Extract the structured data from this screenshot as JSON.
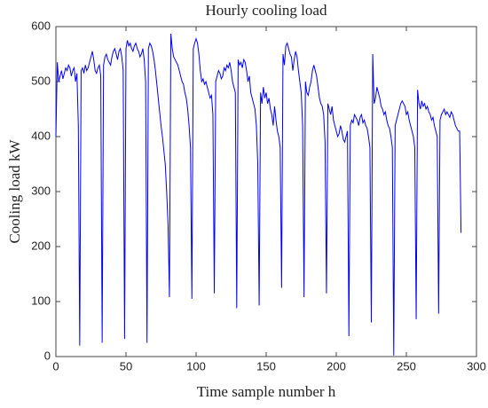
{
  "chart_data": {
    "type": "line",
    "title": "Hourly cooling load",
    "x_label": "Time sample number h",
    "y_label": "Cooling load  kW",
    "x": [
      0,
      1,
      2,
      3,
      4,
      5,
      6,
      7,
      8,
      9,
      10,
      11,
      12,
      13,
      14,
      15,
      16,
      17,
      18,
      19,
      20,
      21,
      22,
      23,
      24,
      25,
      26,
      27,
      28,
      29,
      30,
      31,
      32,
      33,
      34,
      35,
      36,
      37,
      38,
      39,
      40,
      41,
      42,
      43,
      44,
      45,
      46,
      47,
      48,
      49,
      50,
      51,
      52,
      53,
      54,
      55,
      56,
      57,
      58,
      59,
      60,
      61,
      62,
      63,
      64,
      65,
      66,
      67,
      68,
      69,
      70,
      71,
      72,
      73,
      74,
      75,
      76,
      77,
      78,
      79,
      80,
      81,
      82,
      83,
      84,
      85,
      86,
      87,
      88,
      89,
      90,
      91,
      92,
      93,
      94,
      95,
      96,
      97,
      98,
      99,
      100,
      101,
      102,
      103,
      104,
      105,
      106,
      107,
      108,
      109,
      110,
      111,
      112,
      113,
      114,
      115,
      116,
      117,
      118,
      119,
      120,
      121,
      122,
      123,
      124,
      125,
      126,
      127,
      128,
      129,
      130,
      131,
      132,
      133,
      134,
      135,
      136,
      137,
      138,
      139,
      140,
      141,
      142,
      143,
      144,
      145,
      146,
      147,
      148,
      149,
      150,
      151,
      152,
      153,
      154,
      155,
      156,
      157,
      158,
      159,
      160,
      161,
      162,
      163,
      164,
      165,
      166,
      167,
      168,
      169,
      170,
      171,
      172,
      173,
      174,
      175,
      176,
      177,
      178,
      179,
      180,
      181,
      182,
      183,
      184,
      185,
      186,
      187,
      188,
      189,
      190,
      191,
      192,
      193,
      194,
      195,
      196,
      197,
      198,
      199,
      200,
      201,
      202,
      203,
      204,
      205,
      206,
      207,
      208,
      209,
      210,
      211,
      212,
      213,
      214,
      215,
      216,
      217,
      218,
      219,
      220,
      221,
      222,
      223,
      224,
      225,
      226,
      227,
      228,
      229,
      230,
      231,
      232,
      233,
      234,
      235,
      236,
      237,
      238,
      239,
      240,
      241,
      242,
      243,
      244,
      245,
      246,
      247,
      248,
      249,
      250,
      251,
      252,
      253,
      254,
      255,
      256,
      257,
      258,
      259,
      260,
      261,
      262,
      263,
      264,
      265,
      266,
      267,
      268,
      269,
      270,
      271,
      272,
      273,
      274,
      275,
      276,
      277,
      278,
      279,
      280,
      281,
      282,
      283,
      284,
      285,
      286,
      287,
      288,
      289
    ],
    "series": [
      {
        "name": "Cooling load",
        "color": "#0000ff",
        "values": [
          400,
          535,
          500,
          510,
          520,
          505,
          515,
          525,
          520,
          530,
          525,
          510,
          520,
          525,
          500,
          515,
          420,
          20,
          520,
          525,
          515,
          530,
          520,
          525,
          535,
          545,
          555,
          540,
          520,
          515,
          525,
          530,
          510,
          25,
          530,
          545,
          550,
          540,
          535,
          530,
          545,
          555,
          560,
          550,
          540,
          555,
          560,
          545,
          520,
          32,
          560,
          575,
          565,
          570,
          560,
          555,
          565,
          570,
          560,
          555,
          545,
          550,
          560,
          540,
          500,
          25,
          560,
          570,
          565,
          555,
          540,
          520,
          495,
          470,
          445,
          420,
          400,
          375,
          350,
          300,
          240,
          108,
          587,
          560,
          545,
          540,
          535,
          530,
          520,
          510,
          500,
          495,
          480,
          470,
          450,
          420,
          380,
          105,
          560,
          570,
          578,
          570,
          550,
          520,
          500,
          505,
          495,
          500,
          490,
          480,
          470,
          475,
          440,
          115,
          500,
          510,
          520,
          515,
          505,
          510,
          525,
          520,
          530,
          525,
          535,
          520,
          500,
          490,
          480,
          88,
          540,
          530,
          535,
          525,
          540,
          535,
          520,
          500,
          510,
          480,
          470,
          460,
          450,
          420,
          350,
          93,
          480,
          460,
          490,
          470,
          480,
          460,
          470,
          450,
          440,
          420,
          455,
          430,
          410,
          400,
          380,
          125,
          550,
          530,
          565,
          570,
          560,
          550,
          545,
          520,
          540,
          555,
          545,
          520,
          500,
          480,
          420,
          108,
          500,
          480,
          475,
          490,
          500,
          520,
          530,
          520,
          510,
          490,
          470,
          460,
          455,
          440,
          390,
          115,
          460,
          450,
          440,
          455,
          430,
          420,
          410,
          400,
          405,
          420,
          410,
          395,
          390,
          400,
          410,
          37,
          420,
          430,
          425,
          440,
          435,
          430,
          420,
          435,
          440,
          425,
          430,
          420,
          415,
          400,
          380,
          62,
          550,
          460,
          470,
          490,
          480,
          470,
          455,
          450,
          440,
          445,
          430,
          420,
          415,
          400,
          380,
          2,
          420,
          430,
          440,
          450,
          460,
          465,
          460,
          455,
          440,
          445,
          430,
          420,
          410,
          400,
          380,
          68,
          485,
          460,
          450,
          465,
          455,
          460,
          450,
          455,
          445,
          440,
          430,
          435,
          420,
          410,
          400,
          78,
          430,
          440,
          445,
          450,
          440,
          445,
          440,
          435,
          445,
          440,
          430,
          420,
          415,
          410,
          410,
          225
        ]
      }
    ],
    "xlim": [
      0,
      300
    ],
    "xticks": [
      0,
      50,
      100,
      150,
      200,
      250,
      300
    ],
    "ylim": [
      0,
      600
    ],
    "yticks": [
      0,
      100,
      200,
      300,
      400,
      500,
      600
    ]
  }
}
